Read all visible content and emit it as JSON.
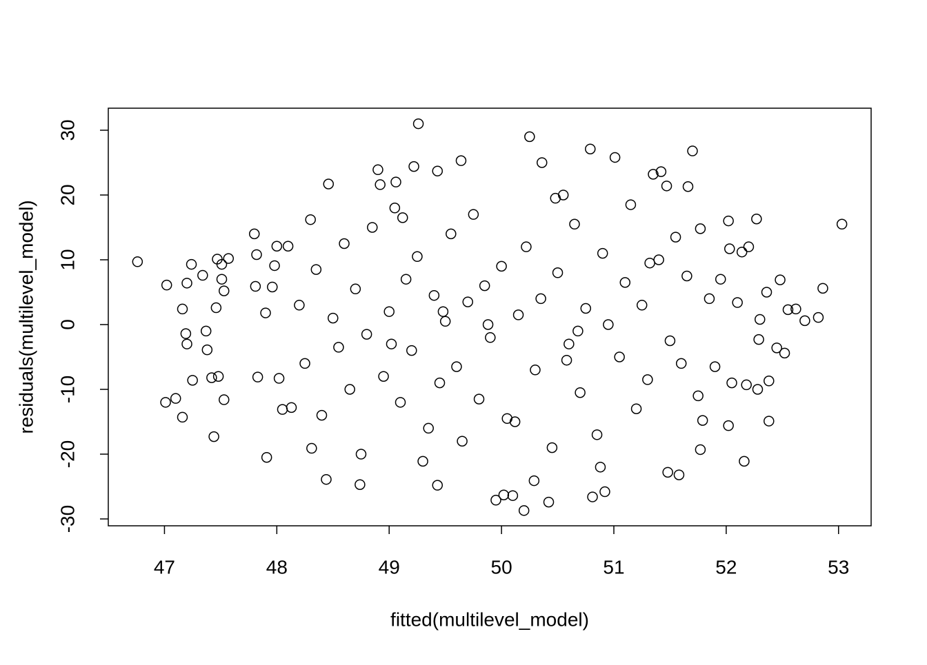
{
  "chart_data": {
    "type": "scatter",
    "x_label": "fitted(multilevel_model)",
    "y_label": "residuals(multilevel_model)",
    "xlim": [
      46.5,
      53.29
    ],
    "ylim": [
      -31.06,
      33.4
    ],
    "xticks": [
      47,
      48,
      49,
      50,
      51,
      52,
      53
    ],
    "yticks": [
      -30,
      -20,
      -10,
      0,
      10,
      20,
      30
    ],
    "marker": "open-circle",
    "color": "#000000",
    "grid": false,
    "x": [
      46.76,
      47.02,
      47.01,
      47.1,
      47.16,
      47.2,
      47.24,
      47.16,
      47.19,
      47.2,
      47.25,
      47.34,
      47.37,
      47.38,
      47.42,
      47.44,
      47.46,
      47.47,
      47.48,
      47.51,
      47.51,
      47.53,
      47.53,
      47.57,
      47.8,
      47.82,
      47.81,
      47.83,
      47.91,
      47.9,
      47.96,
      47.98,
      48.0,
      48.02,
      48.05,
      48.1,
      48.13,
      48.3,
      48.31,
      48.44,
      48.46,
      48.74,
      48.9,
      48.92,
      49.06,
      49.22,
      49.26,
      49.3,
      49.43,
      49.43,
      49.64,
      49.95,
      50.02,
      50.1,
      50.2,
      50.25,
      50.29,
      50.36,
      50.42,
      50.79,
      50.81,
      50.92,
      51.01,
      51.35,
      51.42,
      51.47,
      51.58,
      51.66,
      51.7,
      51.48,
      51.77,
      51.77,
      51.79,
      52.02,
      52.03,
      52.02,
      52.14,
      52.16,
      52.2,
      52.27,
      52.28,
      52.29,
      52.36,
      52.38,
      52.45,
      52.48,
      52.52,
      52.55,
      52.62,
      52.7,
      52.82,
      52.86,
      53.03,
      52.38,
      52.3,
      52.18,
      52.05,
      51.9,
      51.95,
      52.1,
      48.2,
      48.25,
      48.35,
      48.4,
      48.5,
      48.55,
      48.6,
      48.65,
      48.7,
      48.8,
      48.85,
      48.95,
      49.0,
      49.05,
      49.1,
      49.15,
      49.2,
      49.25,
      49.35,
      49.4,
      49.45,
      49.5,
      49.55,
      49.6,
      49.7,
      49.75,
      49.8,
      49.85,
      49.9,
      50.0,
      50.05,
      50.15,
      50.22,
      50.3,
      50.35,
      50.45,
      50.5,
      50.55,
      50.6,
      50.65,
      50.7,
      50.75,
      50.85,
      50.9,
      50.95,
      51.05,
      51.1,
      51.15,
      51.2,
      51.25,
      51.3,
      51.4,
      51.5,
      51.55,
      51.6,
      51.65,
      51.75,
      51.85,
      48.75,
      49.12,
      49.65,
      50.12,
      50.48,
      50.88,
      51.32,
      49.88,
      50.58,
      49.48,
      50.68,
      49.02
    ],
    "values": [
      9.7,
      6.1,
      -12.0,
      -11.4,
      -14.3,
      6.4,
      9.3,
      2.4,
      -1.4,
      -3.0,
      -8.6,
      7.6,
      -1.0,
      -3.9,
      -8.2,
      -17.3,
      2.6,
      10.1,
      -8.0,
      9.3,
      7.0,
      -11.6,
      5.2,
      10.2,
      14.0,
      10.8,
      5.9,
      -8.1,
      -20.5,
      1.8,
      5.8,
      9.1,
      12.1,
      -8.3,
      -13.1,
      12.1,
      -12.8,
      16.2,
      -19.1,
      -23.9,
      21.7,
      -24.7,
      23.9,
      21.6,
      22.0,
      24.4,
      31.0,
      -21.1,
      23.7,
      -24.8,
      25.3,
      -27.1,
      -26.3,
      -26.4,
      -28.7,
      29.0,
      -24.1,
      25.0,
      -27.4,
      27.1,
      -26.6,
      -25.8,
      25.8,
      23.2,
      23.6,
      21.4,
      -23.2,
      21.3,
      26.8,
      -22.8,
      14.8,
      -19.3,
      -14.8,
      16.0,
      11.7,
      -15.6,
      11.2,
      -21.1,
      12.0,
      16.3,
      -10.0,
      -2.3,
      5.0,
      -14.9,
      -3.6,
      6.9,
      -4.4,
      2.3,
      2.4,
      0.6,
      1.1,
      5.6,
      15.5,
      -8.7,
      0.8,
      -9.3,
      -9.0,
      -6.5,
      7.0,
      3.4,
      3.0,
      -6.0,
      8.5,
      -14.0,
      1.0,
      -3.5,
      12.5,
      -10.0,
      5.5,
      -1.5,
      15.0,
      -8.0,
      2.0,
      18.0,
      -12.0,
      7.0,
      -4.0,
      10.5,
      -16.0,
      4.5,
      -9.0,
      0.5,
      14.0,
      -6.5,
      3.5,
      17.0,
      -11.5,
      6.0,
      -2.0,
      9.0,
      -14.5,
      1.5,
      12.0,
      -7.0,
      4.0,
      -19.0,
      8.0,
      20.0,
      -3.0,
      15.5,
      -10.5,
      2.5,
      -17.0,
      11.0,
      0.0,
      -5.0,
      6.5,
      18.5,
      -13.0,
      3.0,
      -8.5,
      10.0,
      -2.5,
      13.5,
      -6.0,
      7.5,
      -11.0,
      4.0,
      -20.0,
      16.5,
      -18.0,
      -15.0,
      19.5,
      -22.0,
      9.5,
      0.0,
      -5.5,
      2.0,
      -1.0,
      -3.0
    ]
  }
}
